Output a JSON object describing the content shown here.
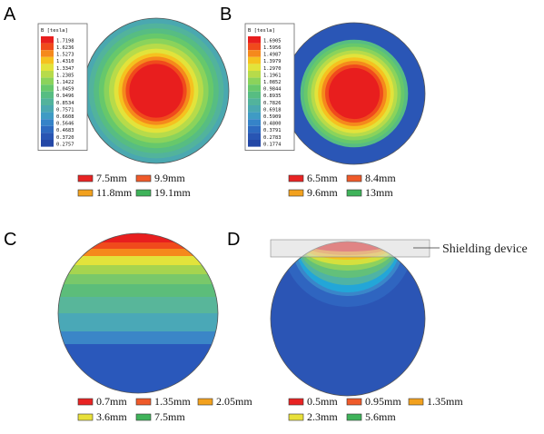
{
  "panels": [
    {
      "letter": "A",
      "legend_title": "B [tesla]",
      "legend_values": [
        "1.7198",
        "1.6236",
        "1.5273",
        "1.4310",
        "1.3347",
        "1.2385",
        "1.1422",
        "1.0459",
        "0.9496",
        "0.8534",
        "0.7571",
        "0.6608",
        "0.5646",
        "0.4683",
        "0.3720",
        "0.2757"
      ],
      "keys": [
        {
          "label": "7.5mm",
          "color": "#e82323"
        },
        {
          "label": "9.9mm",
          "color": "#ef5a2a"
        },
        {
          "label": "11.8mm",
          "color": "#f2a11e"
        },
        {
          "label": "19.1mm",
          "color": "#3fb35a"
        }
      ]
    },
    {
      "letter": "B",
      "legend_title": "B [tesla]",
      "legend_values": [
        "1.6905",
        "1.5956",
        "1.4987",
        "1.3979",
        "1.2970",
        "1.1961",
        "1.0852",
        "0.9844",
        "0.8935",
        "0.7826",
        "0.6918",
        "0.5909",
        "0.4800",
        "0.3791",
        "0.2783",
        "0.1774"
      ],
      "keys": [
        {
          "label": "6.5mm",
          "color": "#e82323"
        },
        {
          "label": "8.4mm",
          "color": "#ef5a2a"
        },
        {
          "label": "9.6mm",
          "color": "#f2a11e"
        },
        {
          "label": "13mm",
          "color": "#3fb35a"
        }
      ]
    },
    {
      "letter": "C",
      "keys": [
        {
          "label": "0.7mm",
          "color": "#e82323"
        },
        {
          "label": "1.35mm",
          "color": "#ef5a2a"
        },
        {
          "label": "2.05mm",
          "color": "#f2a11e"
        },
        {
          "label": "3.6mm",
          "color": "#e8e03a"
        },
        {
          "label": "7.5mm",
          "color": "#3fb35a"
        }
      ]
    },
    {
      "letter": "D",
      "annotation": "Shielding device",
      "keys": [
        {
          "label": "0.5mm",
          "color": "#e82323"
        },
        {
          "label": "0.95mm",
          "color": "#ef5a2a"
        },
        {
          "label": "1.35mm",
          "color": "#f2a11e"
        },
        {
          "label": "2.3mm",
          "color": "#e8e03a"
        },
        {
          "label": "5.6mm",
          "color": "#3fb35a"
        }
      ]
    }
  ],
  "colors": {
    "ramp": [
      "#e81e1e",
      "#f04a1c",
      "#f5891c",
      "#f5c21f",
      "#e2e33b",
      "#b7db4a",
      "#8bd35b",
      "#67c86b",
      "#57bd82",
      "#52b39c",
      "#4aa8b0",
      "#3f9bc4",
      "#3583c8",
      "#2d6ac0",
      "#2855b3",
      "#2347a6"
    ],
    "field_low": "#2a56b6"
  }
}
